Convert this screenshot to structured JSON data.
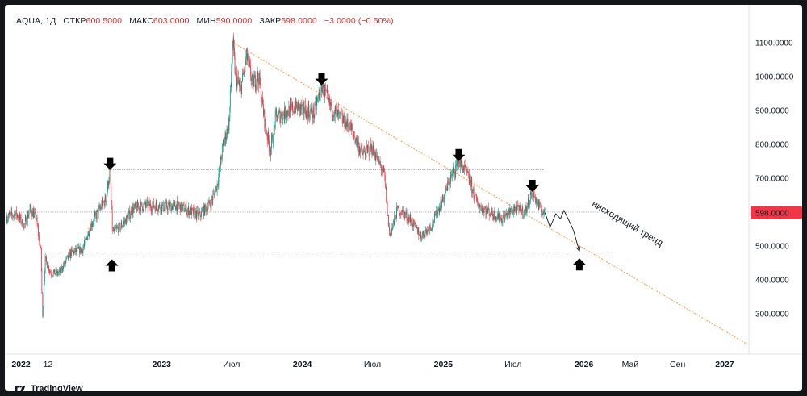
{
  "header": {
    "symbol": "AQUA",
    "interval": "1Д",
    "open_label": "ОТКР",
    "open": "600.5000",
    "high_label": "МАКС",
    "high": "603.0000",
    "low_label": "МИН",
    "low": "590.0000",
    "close_label": "ЗАКР",
    "close": "598.0000",
    "change": "−3.0000 (−0.50%)"
  },
  "chart_data": {
    "type": "candlestick",
    "y_axis": {
      "min": 200,
      "max": 1140,
      "ticks": [
        "1100.0000",
        "1000.0000",
        "900.0000",
        "800.0000",
        "700.0000",
        "600.0000",
        "500.0000",
        "400.0000",
        "300.0000"
      ],
      "tick_values": [
        1100,
        1000,
        900,
        800,
        700,
        600,
        500,
        400,
        300
      ],
      "last_price_label": "598.0000",
      "last_price": 598,
      "last_price_color": "#f23645"
    },
    "x_axis": {
      "ticks": [
        {
          "label": "2022",
          "date": "2022-01-01",
          "bold": true
        },
        {
          "label": "12",
          "date": "2022-03-12",
          "bold": false
        },
        {
          "label": "2023",
          "date": "2023-01-01",
          "bold": true
        },
        {
          "label": "Июл",
          "date": "2023-07-01",
          "bold": false
        },
        {
          "label": "2024",
          "date": "2024-01-01",
          "bold": true
        },
        {
          "label": "Июл",
          "date": "2024-07-01",
          "bold": false
        },
        {
          "label": "2025",
          "date": "2025-01-01",
          "bold": true
        },
        {
          "label": "Июл",
          "date": "2025-07-01",
          "bold": false
        },
        {
          "label": "2026",
          "date": "2026-01-01",
          "bold": true
        },
        {
          "label": "Май",
          "date": "2026-05-01",
          "bold": false
        },
        {
          "label": "Сен",
          "date": "2026-09-01",
          "bold": false
        },
        {
          "label": "2027",
          "date": "2027-01-01",
          "bold": true
        }
      ],
      "domain": [
        "2021-11-20",
        "2027-03-05"
      ]
    },
    "price_path": [
      [
        "2021-11-25",
        585
      ],
      [
        "2021-12-20",
        595
      ],
      [
        "2022-01-10",
        560
      ],
      [
        "2022-01-25",
        610
      ],
      [
        "2022-02-10",
        580
      ],
      [
        "2022-02-22",
        480
      ],
      [
        "2022-02-26",
        290
      ],
      [
        "2022-03-05",
        460
      ],
      [
        "2022-03-20",
        420
      ],
      [
        "2022-04-10",
        420
      ],
      [
        "2022-05-10",
        480
      ],
      [
        "2022-06-10",
        490
      ],
      [
        "2022-07-01",
        560
      ],
      [
        "2022-07-20",
        600
      ],
      [
        "2022-08-10",
        640
      ],
      [
        "2022-08-20",
        725
      ],
      [
        "2022-08-27",
        540
      ],
      [
        "2022-09-20",
        560
      ],
      [
        "2022-10-20",
        610
      ],
      [
        "2022-11-20",
        620
      ],
      [
        "2023-01-10",
        615
      ],
      [
        "2023-02-10",
        620
      ],
      [
        "2023-03-10",
        605
      ],
      [
        "2023-04-10",
        590
      ],
      [
        "2023-05-10",
        630
      ],
      [
        "2023-05-25",
        680
      ],
      [
        "2023-06-10",
        800
      ],
      [
        "2023-06-25",
        860
      ],
      [
        "2023-07-05",
        1100
      ],
      [
        "2023-07-12",
        1000
      ],
      [
        "2023-07-25",
        960
      ],
      [
        "2023-08-10",
        1060
      ],
      [
        "2023-08-25",
        980
      ],
      [
        "2023-09-10",
        1000
      ],
      [
        "2023-09-25",
        870
      ],
      [
        "2023-10-10",
        780
      ],
      [
        "2023-10-25",
        880
      ],
      [
        "2023-11-15",
        890
      ],
      [
        "2023-12-15",
        910
      ],
      [
        "2024-01-10",
        900
      ],
      [
        "2024-02-01",
        890
      ],
      [
        "2024-02-20",
        975
      ],
      [
        "2024-03-10",
        920
      ],
      [
        "2024-04-05",
        880
      ],
      [
        "2024-05-05",
        850
      ],
      [
        "2024-06-05",
        770
      ],
      [
        "2024-07-01",
        790
      ],
      [
        "2024-08-01",
        710
      ],
      [
        "2024-08-15",
        530
      ],
      [
        "2024-09-05",
        610
      ],
      [
        "2024-10-05",
        580
      ],
      [
        "2024-11-05",
        530
      ],
      [
        "2024-12-01",
        560
      ],
      [
        "2025-01-01",
        640
      ],
      [
        "2025-01-20",
        700
      ],
      [
        "2025-02-10",
        750
      ],
      [
        "2025-03-01",
        720
      ],
      [
        "2025-04-01",
        620
      ],
      [
        "2025-05-01",
        600
      ],
      [
        "2025-06-01",
        580
      ],
      [
        "2025-07-05",
        610
      ],
      [
        "2025-08-01",
        600
      ],
      [
        "2025-08-20",
        660
      ],
      [
        "2025-09-10",
        610
      ],
      [
        "2025-09-22",
        598
      ]
    ],
    "up_color": "#089981",
    "down_color": "#f23645",
    "levels": [
      {
        "price": 725,
        "from": "2022-08-10",
        "to": "2025-09-20"
      },
      {
        "price": 600,
        "from": "2022-01-01",
        "to": "2026-03-15"
      },
      {
        "price": 482,
        "from": "2022-03-01",
        "to": "2026-03-15"
      }
    ],
    "trendline": {
      "from": [
        "2023-07-05",
        1100
      ],
      "to": [
        "2027-03-01",
        210
      ],
      "color": "#f7a35c"
    },
    "trend_label": "нисходящий тренд",
    "forecast_path": [
      [
        "2025-09-22",
        598
      ],
      [
        "2025-10-05",
        555
      ],
      [
        "2025-10-20",
        595
      ],
      [
        "2025-11-01",
        580
      ],
      [
        "2025-11-10",
        605
      ],
      [
        "2025-11-25",
        570
      ],
      [
        "2025-12-05",
        545
      ],
      [
        "2025-12-20",
        485
      ]
    ],
    "arrows": [
      {
        "dir": "down",
        "date": "2022-08-20",
        "price": 760
      },
      {
        "dir": "up",
        "date": "2022-08-25",
        "price": 425
      },
      {
        "dir": "down",
        "date": "2024-02-20",
        "price": 1010
      },
      {
        "dir": "down",
        "date": "2025-02-10",
        "price": 786
      },
      {
        "dir": "down",
        "date": "2025-08-20",
        "price": 695
      },
      {
        "dir": "up",
        "date": "2025-12-20",
        "price": 428
      }
    ]
  },
  "brand": {
    "name": "TradingView"
  }
}
